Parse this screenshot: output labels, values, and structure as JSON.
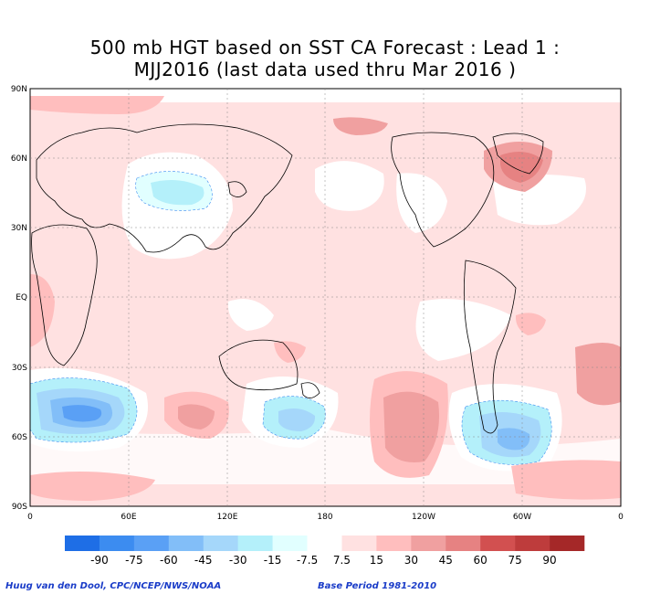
{
  "title": {
    "line1": "500 mb HGT based on SST CA Forecast : Lead 1 :",
    "line2": "MJJ2016 (last data used thru Mar 2016 )"
  },
  "axes": {
    "lat_labels": [
      "90N",
      "60N",
      "30N",
      "EQ",
      "30S",
      "60S",
      "90S"
    ],
    "lon_labels": [
      "0",
      "60E",
      "120E",
      "180",
      "120W",
      "60W",
      "0"
    ]
  },
  "colorbar": {
    "labels": [
      "-90",
      "-75",
      "-60",
      "-45",
      "-30",
      "-15",
      "-7.5",
      "7.5",
      "15",
      "30",
      "45",
      "60",
      "75",
      "90"
    ],
    "colors": [
      "#1e6ee6",
      "#3c8cf0",
      "#5aa0f5",
      "#82bef8",
      "#a5d7fa",
      "#b4f0fa",
      "#e1ffff",
      "#ffffff",
      "#ffe1e1",
      "#ffbebe",
      "#f0a0a0",
      "#e68282",
      "#d25050",
      "#be3c3c",
      "#a52828"
    ]
  },
  "footer": {
    "credit": "Huug van den Dool, CPC/NCEP/NWS/NOAA",
    "base_period": "Base Period 1981-2010"
  }
}
